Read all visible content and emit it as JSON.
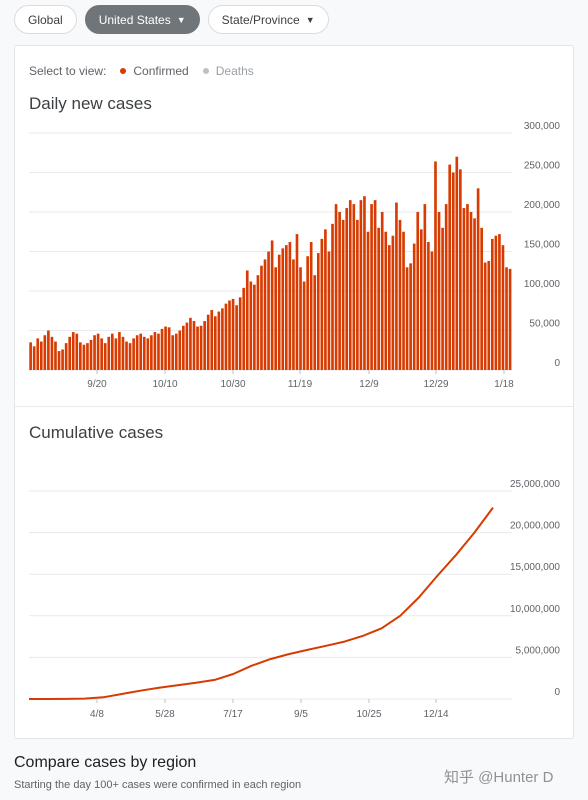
{
  "tabs": [
    {
      "label": "Global",
      "active": false,
      "dropdown": false
    },
    {
      "label": "United States",
      "active": true,
      "dropdown": true
    },
    {
      "label": "State/Province",
      "active": false,
      "dropdown": true
    }
  ],
  "selector": {
    "label": "Select to view:",
    "options": [
      {
        "label": "Confirmed",
        "color": "#d83b01",
        "selected": true
      },
      {
        "label": "Deaths",
        "color": "#bdc1c6",
        "selected": false
      }
    ]
  },
  "chart_data": [
    {
      "type": "bar",
      "title": "Daily new cases",
      "ylim": [
        0,
        300000
      ],
      "yticks": [
        0,
        50000,
        100000,
        150000,
        200000,
        250000,
        300000
      ],
      "ytick_labels": [
        "0",
        "50,000",
        "100,000",
        "150,000",
        "200,000",
        "250,000",
        "300,000"
      ],
      "xtick_labels": [
        "9/20",
        "10/10",
        "10/30",
        "11/19",
        "12/9",
        "12/29",
        "1/18"
      ],
      "grid": true,
      "color": "#d83b01",
      "values": [
        35000,
        30000,
        40000,
        36000,
        44000,
        50000,
        42000,
        36000,
        24000,
        26000,
        34000,
        42000,
        48000,
        46000,
        35000,
        32000,
        34000,
        38000,
        44000,
        46000,
        40000,
        34000,
        42000,
        46000,
        40000,
        48000,
        42000,
        36000,
        34000,
        40000,
        44000,
        46000,
        42000,
        40000,
        44000,
        48000,
        46000,
        52000,
        55000,
        54000,
        44000,
        46000,
        50000,
        56000,
        60000,
        66000,
        62000,
        55000,
        56000,
        62000,
        70000,
        76000,
        68000,
        74000,
        78000,
        84000,
        88000,
        90000,
        82000,
        92000,
        104000,
        126000,
        112000,
        108000,
        120000,
        132000,
        140000,
        150000,
        164000,
        130000,
        146000,
        154000,
        158000,
        162000,
        140000,
        172000,
        130000,
        112000,
        144000,
        162000,
        120000,
        148000,
        166000,
        178000,
        150000,
        185000,
        210000,
        200000,
        190000,
        205000,
        215000,
        210000,
        190000,
        215000,
        220000,
        175000,
        210000,
        215000,
        180000,
        200000,
        175000,
        158000,
        170000,
        212000,
        190000,
        175000,
        130000,
        135000,
        160000,
        200000,
        178000,
        210000,
        162000,
        150000,
        264000,
        200000,
        180000,
        210000,
        260000,
        250000,
        270000,
        254000,
        205000,
        210000,
        200000,
        192000,
        230000,
        180000,
        136000,
        138000,
        166000,
        170000,
        172000,
        158000,
        130000,
        128000
      ]
    },
    {
      "type": "line",
      "title": "Cumulative cases",
      "ylim": [
        0,
        25000000
      ],
      "yticks": [
        0,
        5000000,
        10000000,
        15000000,
        20000000,
        25000000
      ],
      "ytick_labels": [
        "0",
        "5,000,000",
        "10,000,000",
        "15,000,000",
        "20,000,000",
        "25,000,000"
      ],
      "xtick_labels": [
        "4/8",
        "5/28",
        "7/17",
        "9/5",
        "10/25",
        "12/14"
      ],
      "grid": true,
      "color": "#d83b01",
      "values": [
        0,
        0,
        10000,
        50000,
        200000,
        600000,
        1000000,
        1350000,
        1650000,
        1950000,
        2300000,
        3000000,
        4000000,
        4800000,
        5400000,
        5900000,
        6400000,
        6900000,
        7600000,
        8500000,
        10000000,
        12200000,
        14800000,
        17300000,
        20000000,
        23000000
      ]
    }
  ],
  "compare": {
    "title": "Compare cases by region",
    "subtitle": "Starting the day 100+ cases were confirmed in each region"
  },
  "watermark": "知乎 @Hunter D"
}
